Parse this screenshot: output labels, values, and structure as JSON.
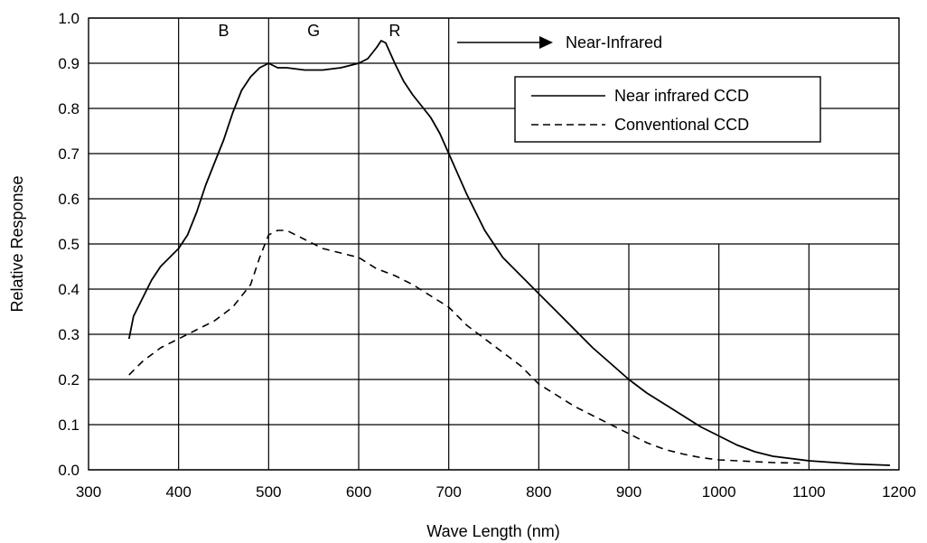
{
  "chart_data": {
    "type": "line",
    "title": "",
    "xlabel": "Wave Length (nm)",
    "ylabel": "Relative Response",
    "xlim": [
      300,
      1200
    ],
    "ylim": [
      0.0,
      1.0
    ],
    "x_ticks": [
      "300",
      "400",
      "500",
      "600",
      "700",
      "800",
      "900",
      "1000",
      "1100",
      "1200"
    ],
    "y_ticks": [
      "0.0",
      "0.1",
      "0.2",
      "0.3",
      "0.4",
      "0.5",
      "0.6",
      "0.7",
      "0.8",
      "0.9",
      "1.0"
    ],
    "grid": true,
    "legend": {
      "position": "top-right"
    },
    "annotations": {
      "bands": [
        {
          "label": "B",
          "x": 450
        },
        {
          "label": "G",
          "x": 550
        },
        {
          "label": "R",
          "x": 640
        }
      ],
      "arrow_text": "Near-Infrared"
    },
    "series": [
      {
        "name": "Near infrared CCD",
        "style": "solid",
        "x": [
          345,
          350,
          360,
          370,
          380,
          390,
          400,
          410,
          420,
          430,
          440,
          450,
          460,
          470,
          480,
          490,
          500,
          510,
          520,
          540,
          560,
          580,
          600,
          610,
          620,
          625,
          630,
          640,
          650,
          660,
          670,
          680,
          690,
          700,
          720,
          740,
          760,
          780,
          800,
          820,
          840,
          860,
          880,
          900,
          920,
          940,
          960,
          980,
          1000,
          1020,
          1040,
          1060,
          1080,
          1100,
          1150,
          1190
        ],
        "y": [
          0.29,
          0.34,
          0.38,
          0.42,
          0.45,
          0.47,
          0.49,
          0.52,
          0.57,
          0.63,
          0.68,
          0.73,
          0.79,
          0.84,
          0.87,
          0.89,
          0.9,
          0.89,
          0.89,
          0.885,
          0.885,
          0.89,
          0.9,
          0.91,
          0.935,
          0.95,
          0.945,
          0.9,
          0.86,
          0.83,
          0.805,
          0.78,
          0.745,
          0.7,
          0.61,
          0.53,
          0.47,
          0.43,
          0.39,
          0.35,
          0.31,
          0.27,
          0.235,
          0.2,
          0.17,
          0.145,
          0.12,
          0.095,
          0.075,
          0.055,
          0.04,
          0.03,
          0.025,
          0.02,
          0.013,
          0.01
        ]
      },
      {
        "name": "Conventional CCD",
        "style": "dashed",
        "x": [
          345,
          360,
          380,
          400,
          420,
          440,
          460,
          480,
          490,
          500,
          510,
          520,
          530,
          540,
          560,
          580,
          600,
          620,
          640,
          660,
          680,
          700,
          720,
          740,
          760,
          780,
          800,
          820,
          840,
          860,
          880,
          900,
          920,
          940,
          960,
          980,
          1000,
          1020,
          1040,
          1060,
          1090
        ],
        "y": [
          0.21,
          0.24,
          0.27,
          0.29,
          0.31,
          0.33,
          0.36,
          0.41,
          0.47,
          0.52,
          0.53,
          0.53,
          0.52,
          0.51,
          0.49,
          0.48,
          0.47,
          0.445,
          0.43,
          0.41,
          0.385,
          0.36,
          0.32,
          0.29,
          0.26,
          0.23,
          0.19,
          0.165,
          0.14,
          0.12,
          0.1,
          0.08,
          0.06,
          0.045,
          0.035,
          0.027,
          0.022,
          0.02,
          0.018,
          0.016,
          0.015
        ]
      }
    ]
  }
}
